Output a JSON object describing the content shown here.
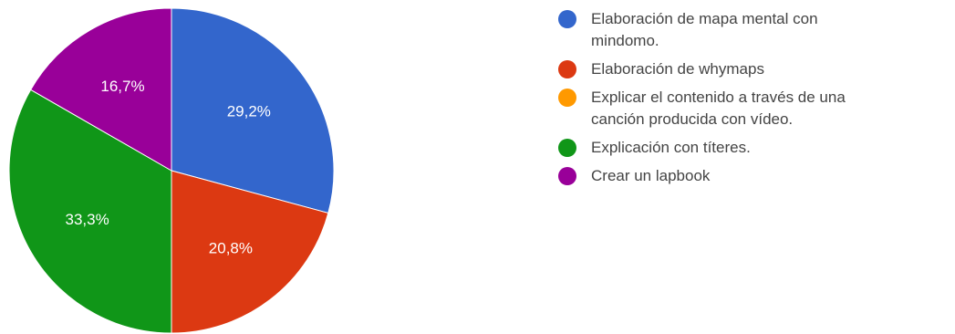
{
  "chart_data": {
    "type": "pie",
    "slices": [
      {
        "label": "Elaboración de mapa mental con mindomo.",
        "value": 29.2,
        "value_label": "29,2%",
        "color": "#3366cc"
      },
      {
        "label": "Elaboración de whymaps",
        "value": 20.8,
        "value_label": "20,8%",
        "color": "#dc3912"
      },
      {
        "label": "Explicar el contenido a través de una canción producida con vídeo.",
        "value": 0,
        "value_label": "",
        "color": "#ff9900"
      },
      {
        "label": "Explicación con títeres.",
        "value": 33.3,
        "value_label": "33,3%",
        "color": "#109618"
      },
      {
        "label": "Crear un lapbook",
        "value": 16.7,
        "value_label": "16,7%",
        "color": "#990099"
      }
    ],
    "start_angle_deg": 90,
    "direction": "clockwise",
    "legend_position": "right"
  },
  "legend": {
    "items": [
      {
        "label_lines": [
          "Elaboración de mapa mental con",
          "mindomo."
        ],
        "color": "#3366cc"
      },
      {
        "label_lines": [
          "Elaboración de whymaps"
        ],
        "color": "#dc3912"
      },
      {
        "label_lines": [
          "Explicar el contenido a través de una",
          "canción producida con vídeo."
        ],
        "color": "#ff9900"
      },
      {
        "label_lines": [
          "Explicación con títeres."
        ],
        "color": "#109618"
      },
      {
        "label_lines": [
          "Crear un lapbook"
        ],
        "color": "#990099"
      }
    ]
  }
}
